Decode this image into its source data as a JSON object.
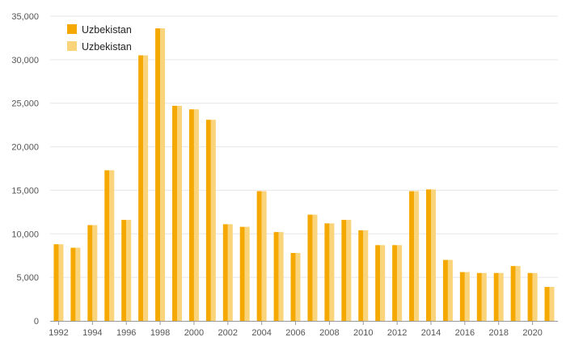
{
  "chart_data": {
    "type": "bar",
    "title": "",
    "xlabel": "",
    "ylabel": "",
    "ylim": [
      0,
      35000
    ],
    "yticks": [
      0,
      5000,
      10000,
      15000,
      20000,
      25000,
      30000,
      35000
    ],
    "ytick_labels": [
      "0",
      "5,000",
      "10,000",
      "15,000",
      "20,000",
      "25,000",
      "30,000",
      "35,000"
    ],
    "grid": true,
    "legend_position": "top-left",
    "categories": [
      "1992",
      "1993",
      "1994",
      "1995",
      "1996",
      "1997",
      "1998",
      "1999",
      "2000",
      "2001",
      "2002",
      "2003",
      "2004",
      "2005",
      "2006",
      "2007",
      "2008",
      "2009",
      "2010",
      "2011",
      "2012",
      "2013",
      "2014",
      "2015",
      "2016",
      "2017",
      "2018",
      "2019",
      "2020",
      "2021"
    ],
    "xtick_labels": [
      "1992",
      "1994",
      "1996",
      "1998",
      "2000",
      "2002",
      "2004",
      "2006",
      "2008",
      "2010",
      "2012",
      "2014",
      "2016",
      "2018",
      "2020"
    ],
    "series": [
      {
        "name": "Uzbekistan",
        "color": "#F5A800",
        "values": [
          8800,
          8400,
          11000,
          17300,
          11600,
          30500,
          33600,
          24700,
          24300,
          23100,
          11100,
          10800,
          14900,
          10200,
          7800,
          12200,
          11200,
          11600,
          10400,
          8700,
          8700,
          14900,
          15100,
          7000,
          5600,
          5500,
          5500,
          6300,
          5500,
          3900
        ]
      },
      {
        "name": "Uzbekistan",
        "color": "#FAD47A",
        "values": [
          8800,
          8400,
          11000,
          17300,
          11600,
          30500,
          33600,
          24700,
          24300,
          23100,
          11100,
          10800,
          14900,
          10200,
          7800,
          12200,
          11200,
          11600,
          10400,
          8700,
          8700,
          14900,
          15100,
          7000,
          5600,
          5500,
          5500,
          6300,
          5500,
          3900
        ]
      }
    ]
  }
}
